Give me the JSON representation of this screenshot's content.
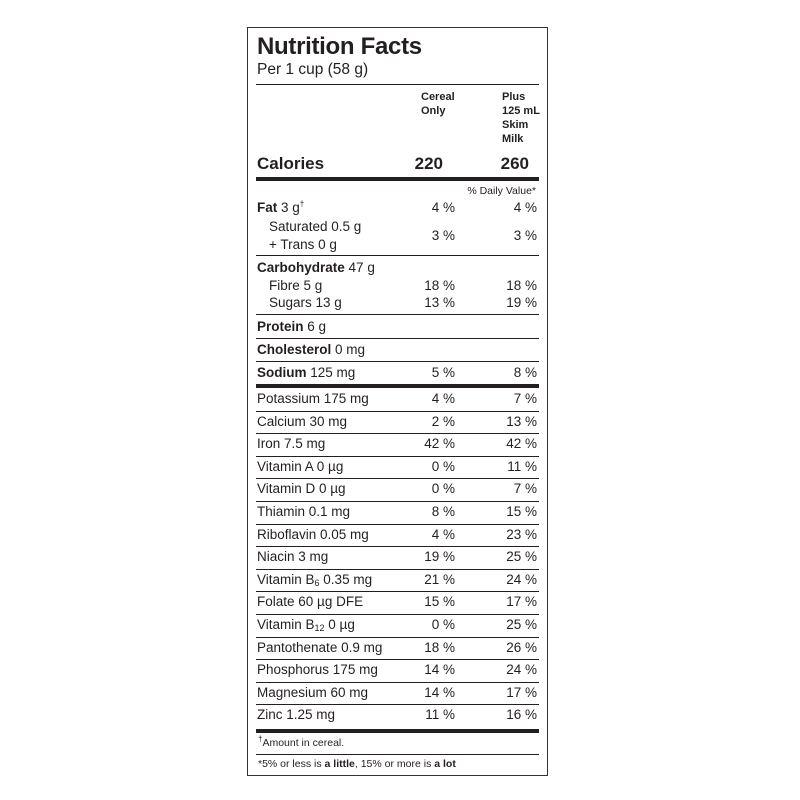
{
  "header": {
    "title": "Nutrition Facts",
    "serving": "Per 1 cup (58 g)",
    "col1": [
      "Cereal",
      "Only"
    ],
    "col2": [
      "Plus",
      "125 mL",
      "Skim",
      "Milk"
    ]
  },
  "calories": {
    "label": "Calories",
    "v1": "220",
    "v2": "260"
  },
  "dv_header": "% Daily Value*",
  "fat": {
    "label": "Fat",
    "amount": "3 g",
    "dagger": "†",
    "v1": "4 %",
    "v2": "4 %"
  },
  "saturated": {
    "label": "Saturated 0.5 g",
    "trans": "+ Trans 0 g",
    "v1": "3 %",
    "v2": "3 %"
  },
  "carb": {
    "label": "Carbohydrate",
    "amount": "47 g"
  },
  "fibre": {
    "label": "Fibre 5 g",
    "v1": "18 %",
    "v2": "18 %"
  },
  "sugars": {
    "label": "Sugars 13 g",
    "v1": "13 %",
    "v2": "19 %"
  },
  "protein": {
    "label": "Protein",
    "amount": "6 g"
  },
  "cholesterol": {
    "label": "Cholesterol",
    "amount": "0 mg"
  },
  "sodium": {
    "label": "Sodium",
    "amount": "125 mg",
    "v1": "5 %",
    "v2": "8 %"
  },
  "nutrients": [
    {
      "label": "Potassium 175 mg",
      "v1": "4 %",
      "v2": "7 %"
    },
    {
      "label": "Calcium 30 mg",
      "v1": "2 %",
      "v2": "13 %"
    },
    {
      "label": "Iron 7.5 mg",
      "v1": "42 %",
      "v2": "42 %"
    },
    {
      "label": "Vitamin A 0 µg",
      "v1": "0 %",
      "v2": "11 %"
    },
    {
      "label": "Vitamin D 0 µg",
      "v1": "0 %",
      "v2": "7 %"
    },
    {
      "label": "Thiamin 0.1 mg",
      "v1": "8 %",
      "v2": "15 %"
    },
    {
      "label": "Riboflavin 0.05 mg",
      "v1": "4 %",
      "v2": "23 %"
    },
    {
      "label": "Niacin 3 mg",
      "v1": "19 %",
      "v2": "25 %"
    },
    {
      "label": "Vitamin B",
      "subscript": "6",
      "rest": " 0.35 mg",
      "v1": "21 %",
      "v2": "24 %"
    },
    {
      "label": "Folate 60 µg DFE",
      "v1": "15 %",
      "v2": "17 %"
    },
    {
      "label": "Vitamin B",
      "subscript": "12",
      "rest": " 0 µg",
      "v1": "0 %",
      "v2": "25 %"
    },
    {
      "label": "Pantothenate 0.9 mg",
      "v1": "18 %",
      "v2": "26 %"
    },
    {
      "label": "Phosphorus 175 mg",
      "v1": "14 %",
      "v2": "24 %"
    },
    {
      "label": "Magnesium 60 mg",
      "v1": "14 %",
      "v2": "17 %"
    },
    {
      "label": "Zinc 1.25 mg",
      "v1": "11 %",
      "v2": "16 %"
    }
  ],
  "footnote1": {
    "dagger": "†",
    "text": "Amount in cereal."
  },
  "footnote2": {
    "p1": "*5% or less is ",
    "b1": "a little",
    "p2": ", 15% or more is ",
    "b2": "a lot"
  }
}
